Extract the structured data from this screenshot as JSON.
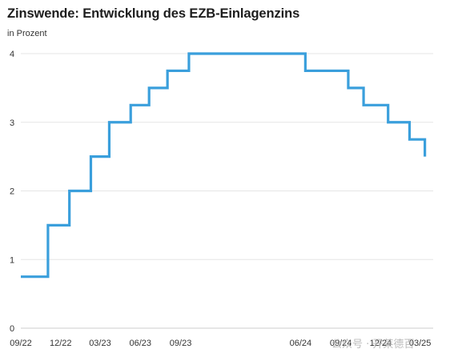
{
  "header": {
    "title": "Zinswende: Entwicklung des EZB-Einlagenzins",
    "subtitle": "in Prozent"
  },
  "watermark": {
    "text": "公众号 · 开莱德百"
  },
  "colors": {
    "line": "#3a9fdc",
    "grid": "#e6e6e6",
    "axis": "#cccccc"
  },
  "chart_data": {
    "type": "line",
    "step": true,
    "title": "Zinswende: Entwicklung des EZB-Einlagenzins",
    "subtitle": "in Prozent",
    "xlabel": "",
    "ylabel": "",
    "ylim": [
      0,
      4
    ],
    "xlim": [
      "2022-09-01",
      "2025-03-31"
    ],
    "grid": true,
    "yticks": [
      0,
      1,
      2,
      3,
      4
    ],
    "xticks": [
      {
        "date": "2022-09-01",
        "label": "09/22"
      },
      {
        "date": "2022-12-01",
        "label": "12/22"
      },
      {
        "date": "2023-03-01",
        "label": "03/23"
      },
      {
        "date": "2023-06-01",
        "label": "06/23"
      },
      {
        "date": "2023-09-01",
        "label": "09/23"
      },
      {
        "date": "2024-06-01",
        "label": "06/24"
      },
      {
        "date": "2024-09-01",
        "label": "09/24"
      },
      {
        "date": "2024-12-01",
        "label": "12/24"
      },
      {
        "date": "2025-03-01",
        "label": "03/25"
      }
    ],
    "series": [
      {
        "points": [
          {
            "x": "2022-09-01",
            "y": 0.75
          },
          {
            "x": "2022-11-02",
            "y": 1.5
          },
          {
            "x": "2022-12-21",
            "y": 2.0
          },
          {
            "x": "2023-02-08",
            "y": 2.5
          },
          {
            "x": "2023-03-22",
            "y": 3.0
          },
          {
            "x": "2023-05-10",
            "y": 3.25
          },
          {
            "x": "2023-06-21",
            "y": 3.5
          },
          {
            "x": "2023-08-02",
            "y": 3.75
          },
          {
            "x": "2023-09-20",
            "y": 4.0
          },
          {
            "x": "2024-06-12",
            "y": 3.75
          },
          {
            "x": "2024-09-18",
            "y": 3.5
          },
          {
            "x": "2024-10-23",
            "y": 3.25
          },
          {
            "x": "2024-12-18",
            "y": 3.0
          },
          {
            "x": "2025-02-05",
            "y": 2.75
          },
          {
            "x": "2025-03-12",
            "y": 2.5
          }
        ],
        "end": "2025-03-12"
      }
    ]
  }
}
